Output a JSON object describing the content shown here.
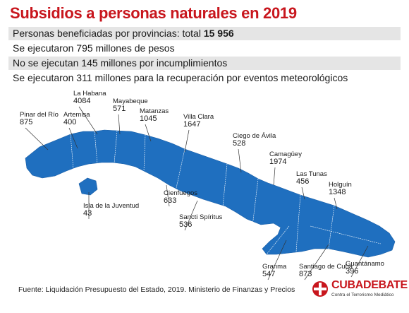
{
  "title": "Subsidios a personas naturales en 2019",
  "facts": {
    "line1_text": "Personas beneficiadas por provincias: total ",
    "line1_total": "15 956",
    "line2": "Se ejecutaron 795 millones de pesos",
    "line3": "No se ejecutan 145 millones por incumplimientos",
    "line4": "Se ejecutaron 311 millones para la recuperación por eventos meteorológicos"
  },
  "provinces": [
    {
      "name": "Pinar del Río",
      "value": "875"
    },
    {
      "name": "Artemisa",
      "value": "400"
    },
    {
      "name": "La Habana",
      "value": "4084"
    },
    {
      "name": "Mayabeque",
      "value": "571"
    },
    {
      "name": "Matanzas",
      "value": "1045"
    },
    {
      "name": "Villa Clara",
      "value": "1647"
    },
    {
      "name": "Ciego de Ávila",
      "value": "528"
    },
    {
      "name": "Camagüey",
      "value": "1974"
    },
    {
      "name": "Las Tunas",
      "value": "456"
    },
    {
      "name": "Holguín",
      "value": "1348"
    },
    {
      "name": "Cienfuegos",
      "value": "633"
    },
    {
      "name": "Isla de la Juventud",
      "value": "43"
    },
    {
      "name": "Sancti Spíritus",
      "value": "536"
    },
    {
      "name": "Granma",
      "value": "547"
    },
    {
      "name": "Santiago de Cuba",
      "value": "873"
    },
    {
      "name": "Guantánamo",
      "value": "396"
    }
  ],
  "source": "Fuente: Liquidación Presupuesto del Estado, 2019. Ministerio de Finanzas y Precios",
  "logo": {
    "name": "CUBADEBATE",
    "tagline": "Contra el Terrorismo Mediático"
  },
  "colors": {
    "title": "#c8161d",
    "map_fill": "#1f6fbf",
    "leader": "#333333",
    "band": "#e5e5e5"
  }
}
